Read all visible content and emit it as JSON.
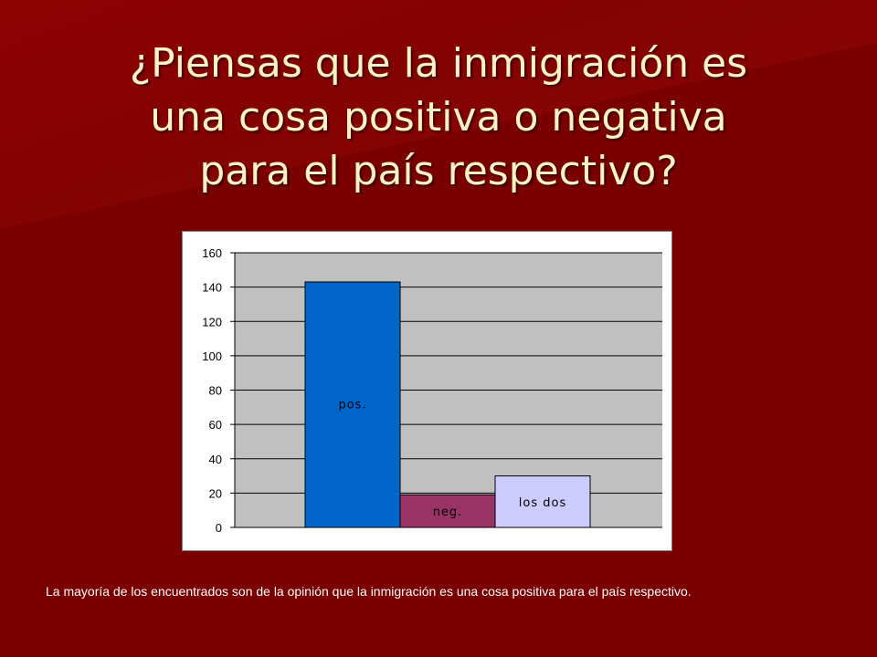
{
  "slide": {
    "title_lines": [
      "¿Piensas que la inmigración es",
      "una cosa positiva o negativa",
      "para el país respectivo?"
    ],
    "footnote": "La mayoría de los encuentrados son de la opinión que la inmigración es una cosa positiva para el país respectivo."
  },
  "colors": {
    "background": "#7a0000",
    "title": "#fbf3c3",
    "plot_area": "#c0c0c0"
  },
  "chart_data": {
    "type": "bar",
    "categories": [
      "pos.",
      "neg.",
      "los dos"
    ],
    "values": [
      143,
      19,
      30
    ],
    "bar_colors": [
      "#0066cc",
      "#993366",
      "#ccccff"
    ],
    "ylim": [
      0,
      160
    ],
    "yticks": [
      "0",
      "20",
      "40",
      "60",
      "80",
      "100",
      "120",
      "140",
      "160"
    ],
    "grid": true,
    "legend": "none"
  }
}
